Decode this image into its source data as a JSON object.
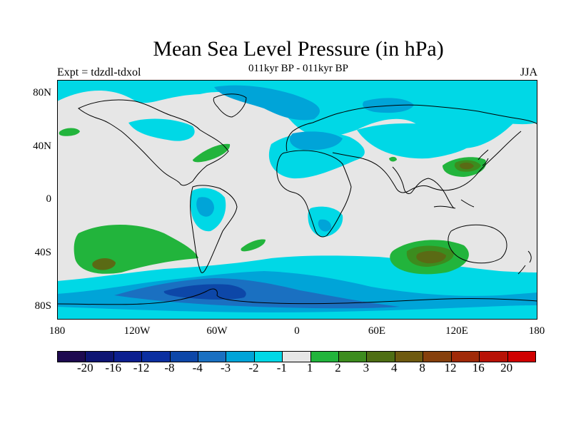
{
  "title": "Mean Sea Level Pressure (in hPa)",
  "subtitle": "011kyr BP - 011kyr BP",
  "left_label": "Expt = tdzdl-tdxol",
  "right_label": "JJA",
  "y_ticks": [
    "80N",
    "40N",
    "0",
    "40S",
    "80S"
  ],
  "x_ticks": [
    "180",
    "120W",
    "60W",
    "0",
    "60E",
    "120E",
    "180"
  ],
  "colorbar": {
    "labels": [
      "-20",
      "-16",
      "-12",
      "-8",
      "-4",
      "-3",
      "-2",
      "-1",
      "1",
      "2",
      "3",
      "4",
      "8",
      "12",
      "16",
      "20"
    ],
    "colors": [
      "#1e0a50",
      "#0e1573",
      "#0c1f8f",
      "#0b2fa0",
      "#0d47a8",
      "#1a70c1",
      "#00a4d8",
      "#00d8e6",
      "#e6e6e6",
      "#22b43c",
      "#3c8c1e",
      "#4e6e14",
      "#6e5a10",
      "#86400c",
      "#a02a08",
      "#b81206",
      "#d00000"
    ]
  },
  "legend_colors": {
    "neutral": "#e6e6e6",
    "neg1": "#00d8e6",
    "neg2": "#00a4d8",
    "neg3": "#1a70c1",
    "neg4": "#0d47a8",
    "pos1": "#22b43c",
    "pos2": "#3c8c1e",
    "pos3": "#5a6a14"
  }
}
